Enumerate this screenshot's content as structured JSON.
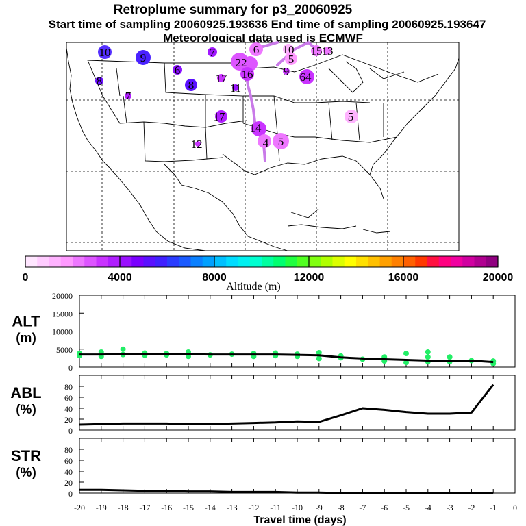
{
  "title": {
    "line1": "Retroplume summary for p3_20060925",
    "line2": "Start time of sampling 20060925.193636     End time of sampling 20060925.193647",
    "line3": "Meteorological data used is ECMWF"
  },
  "map": {
    "labels": [
      {
        "text": "10",
        "alt": 4000
      },
      {
        "text": "9",
        "alt": 4500
      },
      {
        "text": "7",
        "alt": 3200
      },
      {
        "text": "8",
        "alt": 3800
      },
      {
        "text": "6",
        "alt": 3500
      },
      {
        "text": "8",
        "alt": 4200
      },
      {
        "text": "7",
        "alt": 3000
      },
      {
        "text": "17",
        "alt": 2500
      },
      {
        "text": "11",
        "alt": 3500
      },
      {
        "text": "17",
        "alt": 3000
      },
      {
        "text": "12",
        "alt": 2500
      },
      {
        "text": "22",
        "alt": 2200
      },
      {
        "text": "6",
        "alt": 2000
      },
      {
        "text": "16",
        "alt": 2800
      },
      {
        "text": "10",
        "alt": 1500
      },
      {
        "text": "5",
        "alt": 2000
      },
      {
        "text": "15",
        "alt": 1500
      },
      {
        "text": "13",
        "alt": 1800
      },
      {
        "text": "9",
        "alt": 3000
      },
      {
        "text": "64",
        "alt": 2800
      },
      {
        "text": "14",
        "alt": 2800
      },
      {
        "text": "4",
        "alt": 1500
      },
      {
        "text": "5",
        "alt": 1500
      },
      {
        "text": "5",
        "alt": 1500
      }
    ]
  },
  "colorbar": {
    "tick_labels": [
      "0",
      "4000",
      "8000",
      "12000",
      "16000",
      "20000"
    ],
    "label": "Altitude (m)",
    "colors": [
      "#ffe6ff",
      "#ffccff",
      "#ffb3ff",
      "#ff99ff",
      "#ee77ff",
      "#dd55ff",
      "#c933ff",
      "#b01eff",
      "#9a10ff",
      "#7a00ff",
      "#5a10ff",
      "#4020ff",
      "#2a3cff",
      "#1a5aff",
      "#0a80ff",
      "#00a0ff",
      "#00c0ff",
      "#00dcff",
      "#00f0f0",
      "#00ffd0",
      "#00ffa0",
      "#00ff70",
      "#20ff40",
      "#50ff20",
      "#80ff10",
      "#b0ff00",
      "#dcff00",
      "#ffff00",
      "#ffe000",
      "#ffc000",
      "#ffa000",
      "#ff8000",
      "#ff6000",
      "#ff3800",
      "#ff1040",
      "#ff0080",
      "#f000a0",
      "#d000a0",
      "#b00090",
      "#900080"
    ]
  },
  "chart_data": [
    {
      "type": "line",
      "name": "ALT",
      "ylabel_line1": "ALT",
      "ylabel_line2": "(m)",
      "ylim": [
        0,
        20000
      ],
      "yticks": [
        "20000",
        "15000",
        "10000",
        "5000",
        "0"
      ],
      "x": [
        -20,
        -19,
        -18,
        -17,
        -16,
        -15,
        -14,
        -13,
        -12,
        -11,
        -10,
        -9,
        -8,
        -7,
        -6,
        -5,
        -4,
        -3,
        -2,
        -1
      ],
      "values": [
        3500,
        3500,
        3600,
        3600,
        3600,
        3600,
        3500,
        3500,
        3500,
        3500,
        3400,
        3300,
        2700,
        2400,
        2200,
        2000,
        1800,
        1800,
        1800,
        1400
      ],
      "scatter": [
        {
          "x": -20,
          "y": 3200
        },
        {
          "x": -20,
          "y": 3800
        },
        {
          "x": -19,
          "y": 3000
        },
        {
          "x": -19,
          "y": 4200
        },
        {
          "x": -18,
          "y": 3500
        },
        {
          "x": -18,
          "y": 5000
        },
        {
          "x": -17,
          "y": 3300
        },
        {
          "x": -17,
          "y": 3900
        },
        {
          "x": -16,
          "y": 3400
        },
        {
          "x": -16,
          "y": 3800
        },
        {
          "x": -15,
          "y": 3000
        },
        {
          "x": -15,
          "y": 4200
        },
        {
          "x": -14,
          "y": 3400
        },
        {
          "x": -13,
          "y": 3600
        },
        {
          "x": -12,
          "y": 3000
        },
        {
          "x": -12,
          "y": 3800
        },
        {
          "x": -11,
          "y": 3200
        },
        {
          "x": -11,
          "y": 3900
        },
        {
          "x": -10,
          "y": 3000
        },
        {
          "x": -10,
          "y": 3600
        },
        {
          "x": -9,
          "y": 4000
        },
        {
          "x": -9,
          "y": 2400
        },
        {
          "x": -8,
          "y": 2600
        },
        {
          "x": -8,
          "y": 3100
        },
        {
          "x": -7,
          "y": 2200
        },
        {
          "x": -6,
          "y": 1700
        },
        {
          "x": -6,
          "y": 2800
        },
        {
          "x": -5,
          "y": 1300
        },
        {
          "x": -5,
          "y": 3800
        },
        {
          "x": -4,
          "y": 1500
        },
        {
          "x": -4,
          "y": 2800
        },
        {
          "x": -4,
          "y": 4200
        },
        {
          "x": -3,
          "y": 1500
        },
        {
          "x": -3,
          "y": 2800
        },
        {
          "x": -2,
          "y": 1800
        },
        {
          "x": -1,
          "y": 1000
        },
        {
          "x": -1,
          "y": 1700
        }
      ]
    },
    {
      "type": "line",
      "name": "ABL",
      "ylabel_line1": "ABL",
      "ylabel_line2": "(%)",
      "ylim": [
        0,
        100
      ],
      "yticks": [
        "80",
        "60",
        "40",
        "20",
        "0"
      ],
      "x": [
        -20,
        -19,
        -18,
        -17,
        -16,
        -15,
        -14,
        -13,
        -12,
        -11,
        -10,
        -9,
        -8,
        -7,
        -6,
        -5,
        -4,
        -3,
        -2,
        -1
      ],
      "values": [
        10,
        11,
        12,
        12,
        12,
        11,
        11,
        12,
        13,
        14,
        16,
        15,
        27,
        40,
        37,
        33,
        30,
        30,
        32,
        83
      ]
    },
    {
      "type": "line",
      "name": "STR",
      "ylabel_line1": "STR",
      "ylabel_line2": "(%)",
      "ylim": [
        0,
        100
      ],
      "yticks": [
        "80",
        "60",
        "40",
        "20",
        "0"
      ],
      "x": [
        -20,
        -19,
        -18,
        -17,
        -16,
        -15,
        -14,
        -13,
        -12,
        -11,
        -10,
        -9,
        -8,
        -7,
        -6,
        -5,
        -4,
        -3,
        -2,
        -1
      ],
      "values": [
        6,
        6,
        5,
        4,
        4,
        3,
        3,
        2,
        2,
        2,
        1,
        1,
        0,
        0,
        0,
        0,
        0,
        0,
        0,
        0
      ]
    }
  ],
  "x_axis": {
    "tick_labels": [
      "-20",
      "-19",
      "-18",
      "-17",
      "-16",
      "-15",
      "-14",
      "-13",
      "-12",
      "-11",
      "-10",
      "-9",
      "-8",
      "-7",
      "-6",
      "-5",
      "-4",
      "-3",
      "-2",
      "-1",
      "0"
    ],
    "label": "Travel time (days)"
  }
}
